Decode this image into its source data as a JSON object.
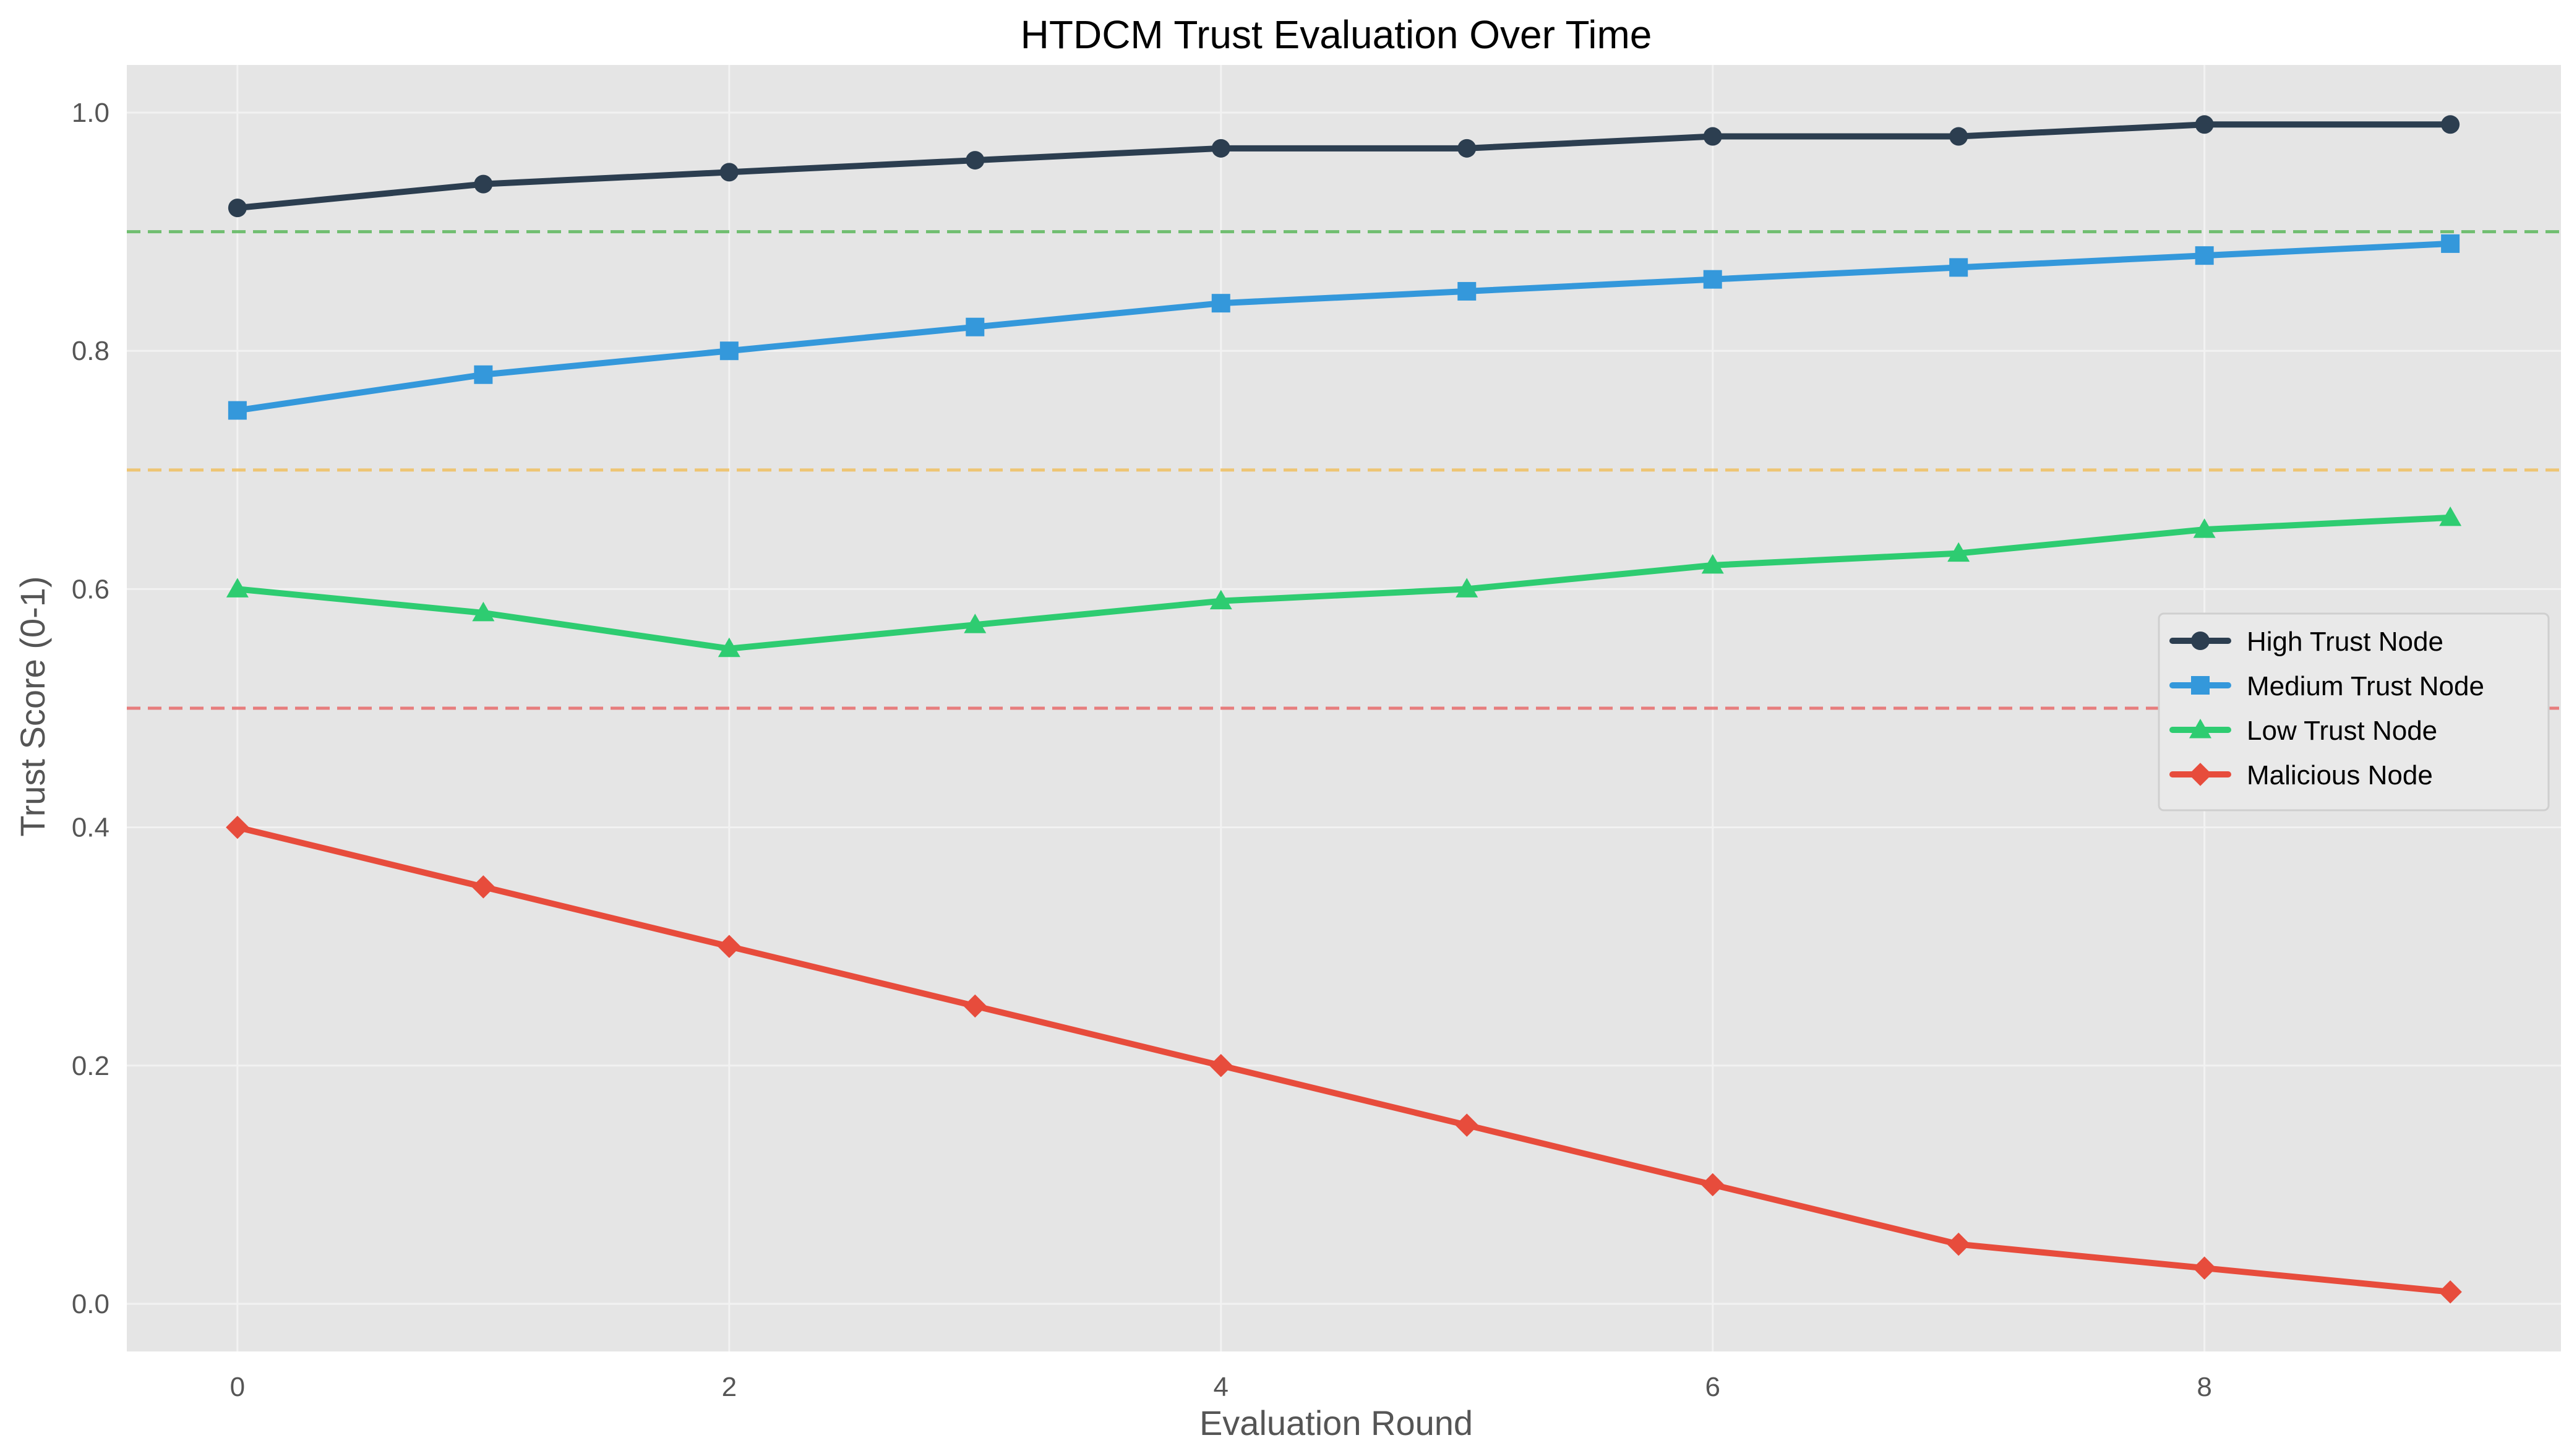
{
  "chart_data": {
    "type": "line",
    "title": "HTDCM Trust Evaluation Over Time",
    "xlabel": "Evaluation Round",
    "ylabel": "Trust Score (0-1)",
    "x": [
      0,
      1,
      2,
      3,
      4,
      5,
      6,
      7,
      8,
      9
    ],
    "xlim": [
      -0.45,
      9.45
    ],
    "ylim": [
      -0.04,
      1.04
    ],
    "xticks": [
      0,
      2,
      4,
      6,
      8
    ],
    "yticks": [
      0.0,
      0.2,
      0.4,
      0.6,
      0.8,
      1.0
    ],
    "xtick_labels": [
      "0",
      "2",
      "4",
      "6",
      "8"
    ],
    "ytick_labels": [
      "0.0",
      "0.2",
      "0.4",
      "0.6",
      "0.8",
      "1.0"
    ],
    "grid": true,
    "legend_position": "center-right",
    "background_color": "#e5e5e5",
    "series": [
      {
        "name": "High Trust Node",
        "color": "#2c3e50",
        "marker": "circle",
        "values": [
          0.92,
          0.94,
          0.95,
          0.96,
          0.97,
          0.97,
          0.98,
          0.98,
          0.99,
          0.99
        ]
      },
      {
        "name": "Medium Trust Node",
        "color": "#3498db",
        "marker": "square",
        "values": [
          0.75,
          0.78,
          0.8,
          0.82,
          0.84,
          0.85,
          0.86,
          0.87,
          0.88,
          0.89
        ]
      },
      {
        "name": "Low Trust Node",
        "color": "#2ecc71",
        "marker": "triangle",
        "values": [
          0.6,
          0.58,
          0.55,
          0.57,
          0.59,
          0.6,
          0.62,
          0.63,
          0.65,
          0.66
        ]
      },
      {
        "name": "Malicious Node",
        "color": "#e74c3c",
        "marker": "diamond",
        "values": [
          0.4,
          0.35,
          0.3,
          0.25,
          0.2,
          0.15,
          0.1,
          0.05,
          0.03,
          0.01
        ]
      }
    ],
    "threshold_lines": [
      {
        "y": 0.9,
        "color": "#5cb85c"
      },
      {
        "y": 0.7,
        "color": "#f0c060"
      },
      {
        "y": 0.5,
        "color": "#e86b6b"
      }
    ]
  }
}
